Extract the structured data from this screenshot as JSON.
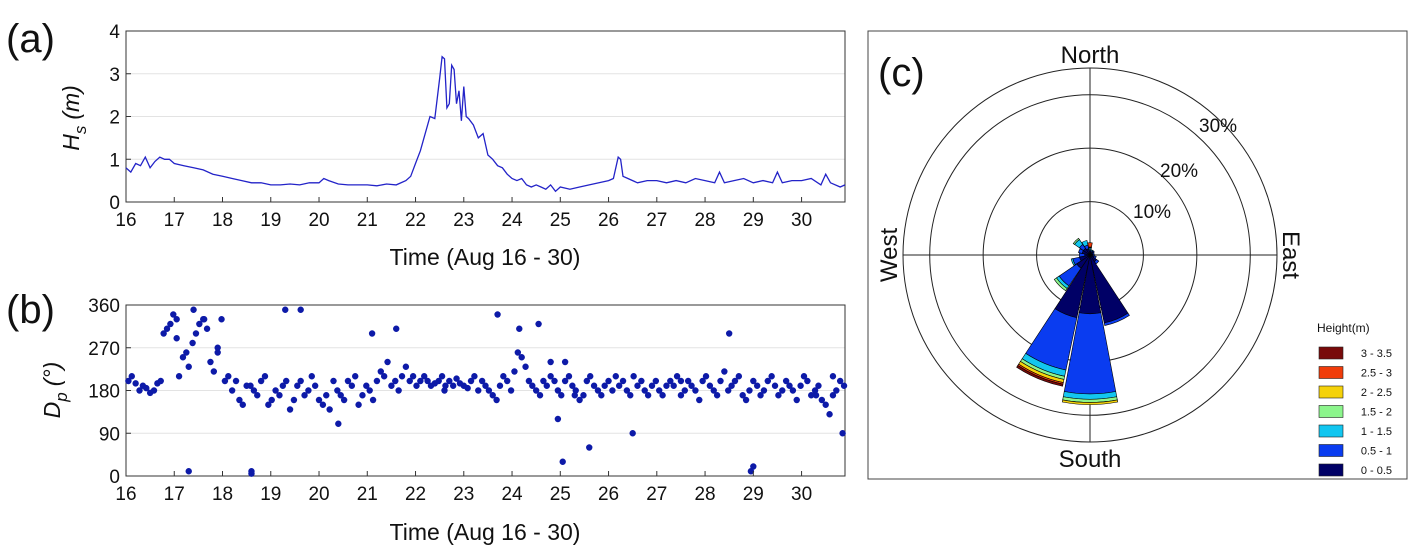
{
  "chart_data": [
    {
      "panel": "(a)",
      "type": "line",
      "ylabel_main": "H",
      "ylabel_sub": "s",
      "ylabel_unit": "(m)",
      "xlabel": "Time (Aug 16 - 30)",
      "xlim": [
        16,
        30.9
      ],
      "ylim": [
        0,
        4
      ],
      "x_ticks": [
        "16",
        "17",
        "18",
        "19",
        "20",
        "21",
        "22",
        "23",
        "24",
        "25",
        "26",
        "27",
        "28",
        "29",
        "30"
      ],
      "y_ticks": [
        "0",
        "1",
        "2",
        "3",
        "4"
      ],
      "grid": true,
      "color": "#2323c8",
      "x": [
        16.0,
        16.1,
        16.2,
        16.3,
        16.4,
        16.5,
        16.6,
        16.7,
        16.8,
        16.9,
        17.0,
        17.2,
        17.4,
        17.6,
        17.8,
        18.0,
        18.2,
        18.4,
        18.6,
        18.8,
        19.0,
        19.2,
        19.4,
        19.6,
        19.8,
        20.0,
        20.1,
        20.2,
        20.4,
        20.6,
        20.8,
        21.0,
        21.2,
        21.4,
        21.6,
        21.8,
        21.9,
        22.0,
        22.1,
        22.2,
        22.3,
        22.4,
        22.5,
        22.55,
        22.6,
        22.65,
        22.7,
        22.75,
        22.8,
        22.85,
        22.9,
        22.95,
        23.0,
        23.05,
        23.1,
        23.2,
        23.3,
        23.4,
        23.5,
        23.6,
        23.7,
        23.8,
        23.9,
        24.0,
        24.1,
        24.2,
        24.3,
        24.4,
        24.5,
        24.6,
        24.7,
        24.8,
        24.9,
        25.0,
        25.2,
        25.4,
        25.6,
        25.8,
        26.0,
        26.1,
        26.2,
        26.25,
        26.3,
        26.4,
        26.6,
        26.8,
        27.0,
        27.2,
        27.4,
        27.6,
        27.8,
        28.0,
        28.2,
        28.3,
        28.4,
        28.6,
        28.8,
        29.0,
        29.2,
        29.4,
        29.5,
        29.6,
        29.8,
        30.0,
        30.2,
        30.4,
        30.5,
        30.6,
        30.8,
        30.9
      ],
      "y": [
        0.8,
        0.7,
        0.9,
        0.85,
        1.05,
        0.8,
        0.95,
        1.05,
        1.0,
        1.0,
        0.9,
        0.85,
        0.8,
        0.75,
        0.65,
        0.6,
        0.55,
        0.5,
        0.45,
        0.45,
        0.4,
        0.4,
        0.42,
        0.4,
        0.45,
        0.45,
        0.55,
        0.5,
        0.42,
        0.4,
        0.4,
        0.4,
        0.38,
        0.42,
        0.4,
        0.5,
        0.6,
        0.9,
        1.2,
        1.6,
        2.0,
        1.95,
        2.9,
        3.4,
        3.35,
        2.2,
        2.3,
        3.2,
        3.1,
        2.3,
        2.6,
        1.9,
        2.7,
        2.0,
        1.95,
        1.8,
        1.5,
        1.6,
        1.1,
        1.0,
        0.85,
        0.8,
        0.65,
        0.55,
        0.5,
        0.55,
        0.4,
        0.35,
        0.4,
        0.35,
        0.3,
        0.4,
        0.25,
        0.35,
        0.3,
        0.35,
        0.4,
        0.45,
        0.5,
        0.55,
        1.05,
        1.0,
        0.6,
        0.55,
        0.45,
        0.5,
        0.5,
        0.45,
        0.5,
        0.45,
        0.55,
        0.5,
        0.45,
        0.7,
        0.45,
        0.5,
        0.55,
        0.45,
        0.5,
        0.45,
        0.7,
        0.45,
        0.5,
        0.5,
        0.55,
        0.4,
        0.65,
        0.45,
        0.35,
        0.4
      ]
    },
    {
      "panel": "(b)",
      "type": "scatter",
      "ylabel_main": "D",
      "ylabel_sub": "p",
      "ylabel_unit": "(°)",
      "xlabel": "Time (Aug 16 - 30)",
      "xlim": [
        16,
        30.9
      ],
      "ylim": [
        0,
        360
      ],
      "x_ticks": [
        "16",
        "17",
        "18",
        "19",
        "20",
        "21",
        "22",
        "23",
        "24",
        "25",
        "26",
        "27",
        "28",
        "29",
        "30"
      ],
      "y_ticks": [
        "0",
        "90",
        "180",
        "270",
        "360"
      ],
      "grid": true,
      "color": "#0d1aa8",
      "x": [
        16.05,
        16.12,
        16.2,
        16.28,
        16.35,
        16.42,
        16.5,
        16.58,
        16.65,
        16.72,
        16.78,
        16.85,
        16.92,
        16.98,
        17.05,
        17.1,
        17.18,
        17.25,
        17.3,
        17.38,
        17.45,
        17.52,
        17.6,
        17.68,
        17.75,
        17.82,
        17.9,
        17.98,
        18.05,
        18.12,
        18.2,
        18.28,
        18.35,
        18.42,
        18.5,
        18.58,
        18.65,
        18.72,
        18.8,
        18.88,
        18.95,
        19.02,
        19.1,
        19.18,
        19.25,
        19.32,
        19.4,
        19.48,
        19.55,
        19.62,
        19.7,
        19.78,
        19.85,
        19.92,
        20.0,
        20.08,
        20.15,
        20.22,
        20.3,
        20.38,
        20.45,
        20.52,
        20.6,
        20.68,
        20.75,
        20.82,
        20.9,
        20.98,
        21.05,
        21.12,
        21.2,
        21.28,
        21.35,
        21.42,
        21.5,
        21.58,
        21.65,
        21.72,
        21.8,
        21.88,
        21.95,
        22.02,
        22.1,
        22.18,
        22.25,
        22.32,
        22.4,
        22.48,
        22.55,
        22.62,
        22.7,
        22.78,
        22.85,
        22.92,
        23.0,
        23.08,
        23.15,
        23.22,
        23.3,
        23.38,
        23.45,
        23.52,
        23.6,
        23.68,
        23.75,
        23.82,
        23.9,
        23.98,
        24.05,
        24.12,
        24.2,
        24.28,
        24.35,
        24.42,
        24.5,
        24.58,
        24.65,
        24.72,
        24.8,
        24.88,
        24.95,
        25.02,
        25.1,
        25.18,
        25.25,
        25.32,
        25.4,
        25.48,
        25.55,
        25.62,
        25.7,
        25.78,
        25.85,
        25.92,
        26.0,
        26.08,
        26.15,
        26.22,
        26.3,
        26.38,
        26.45,
        26.52,
        26.6,
        26.68,
        26.75,
        26.82,
        26.9,
        26.98,
        27.05,
        27.12,
        27.2,
        27.28,
        27.35,
        27.42,
        27.5,
        27.58,
        27.65,
        27.72,
        27.8,
        27.88,
        27.95,
        28.02,
        28.1,
        28.18,
        28.25,
        28.32,
        28.4,
        28.48,
        28.55,
        28.62,
        28.7,
        28.78,
        28.85,
        28.92,
        29.0,
        29.08,
        29.15,
        29.22,
        29.3,
        29.38,
        29.45,
        29.52,
        29.6,
        29.68,
        29.75,
        29.82,
        29.9,
        29.98,
        30.05,
        30.12,
        30.2,
        30.28,
        30.35,
        30.42,
        30.5,
        30.58,
        30.65,
        30.72,
        30.8,
        30.88,
        17.05,
        17.4,
        17.62,
        17.9,
        18.6,
        19.3,
        19.62,
        20.4,
        21.1,
        21.6,
        22.6,
        23.7,
        24.15,
        24.55,
        24.8,
        24.95,
        25.1,
        25.3,
        25.6,
        26.5,
        27.5,
        28.5,
        29.0,
        30.3,
        30.65,
        30.85,
        17.3,
        18.6,
        25.05,
        28.95
      ],
      "y": [
        200,
        210,
        195,
        180,
        190,
        185,
        175,
        180,
        195,
        200,
        300,
        310,
        320,
        340,
        290,
        210,
        250,
        260,
        230,
        280,
        300,
        320,
        330,
        310,
        240,
        220,
        260,
        330,
        200,
        210,
        180,
        200,
        160,
        150,
        190,
        190,
        180,
        170,
        200,
        210,
        150,
        160,
        180,
        170,
        190,
        200,
        140,
        160,
        190,
        200,
        170,
        180,
        210,
        190,
        160,
        150,
        170,
        140,
        200,
        180,
        170,
        160,
        200,
        190,
        210,
        150,
        170,
        190,
        180,
        160,
        200,
        220,
        210,
        240,
        190,
        200,
        180,
        210,
        230,
        200,
        210,
        190,
        200,
        210,
        200,
        190,
        195,
        200,
        210,
        190,
        200,
        190,
        205,
        195,
        190,
        185,
        200,
        210,
        180,
        200,
        190,
        180,
        170,
        160,
        190,
        210,
        200,
        180,
        220,
        260,
        250,
        230,
        200,
        190,
        180,
        170,
        200,
        190,
        210,
        200,
        180,
        170,
        200,
        210,
        190,
        180,
        160,
        170,
        200,
        210,
        190,
        180,
        170,
        190,
        200,
        180,
        210,
        190,
        200,
        180,
        170,
        210,
        190,
        200,
        180,
        170,
        190,
        200,
        180,
        170,
        190,
        200,
        190,
        210,
        170,
        180,
        200,
        190,
        180,
        160,
        200,
        210,
        190,
        180,
        170,
        200,
        220,
        180,
        190,
        200,
        210,
        170,
        160,
        180,
        200,
        190,
        170,
        180,
        200,
        210,
        190,
        170,
        180,
        200,
        190,
        180,
        160,
        190,
        210,
        200,
        170,
        180,
        190,
        160,
        150,
        130,
        170,
        180,
        200,
        190,
        330,
        350,
        330,
        270,
        10,
        350,
        350,
        110,
        300,
        310,
        180,
        340,
        310,
        320,
        240,
        120,
        240,
        170,
        60,
        90,
        200,
        300,
        20,
        170,
        210,
        90,
        10,
        5,
        30,
        10
      ]
    },
    {
      "panel": "(c)",
      "type": "wind-rose",
      "directions": [
        "North",
        "East",
        "South",
        "West"
      ],
      "ring_labels": [
        "10%",
        "20%",
        "30%"
      ],
      "ring_values": [
        10,
        20,
        30
      ],
      "max_percent": 35,
      "legend_title": "Height(m)",
      "bins": [
        {
          "label": "0 - 0.5",
          "color": "#000066"
        },
        {
          "label": "0.5 - 1",
          "color": "#0a3cf0"
        },
        {
          "label": "1 - 1.5",
          "color": "#12c6f0"
        },
        {
          "label": "1.5 - 2",
          "color": "#8cf58c"
        },
        {
          "label": "2 - 2.5",
          "color": "#f5d20a"
        },
        {
          "label": "2.5 - 3",
          "color": "#f03c0a"
        },
        {
          "label": "3 - 3.5",
          "color": "#780a0a"
        }
      ],
      "sector_width_deg": 22.5,
      "sectors": [
        {
          "dir": 0,
          "cum": [
            0.8,
            1.0,
            1.3,
            1.4,
            1.5,
            2.3
          ]
        },
        {
          "dir": 22.5,
          "cum": [
            0.5,
            0.8,
            1.0
          ]
        },
        {
          "dir": 45,
          "cum": [
            0.7,
            1.0
          ]
        },
        {
          "dir": 67.5,
          "cum": [
            0.5,
            0.8
          ]
        },
        {
          "dir": 90,
          "cum": [
            0.5,
            0.8
          ]
        },
        {
          "dir": 112.5,
          "cum": [
            0.8,
            1.2
          ]
        },
        {
          "dir": 135,
          "cum": [
            1.5,
            2.0
          ]
        },
        {
          "dir": 157.5,
          "cum": [
            13.0,
            13.5
          ]
        },
        {
          "dir": 180,
          "cum": [
            11.0,
            26.0,
            27.0,
            27.6,
            28.0
          ]
        },
        {
          "dir": 202.5,
          "cum": [
            12.0,
            22.0,
            23.2,
            23.8,
            24.4,
            24.7,
            25.1
          ]
        },
        {
          "dir": 225,
          "cum": [
            3.0,
            7.0,
            7.6,
            8.1
          ]
        },
        {
          "dir": 247.5,
          "cum": [
            2.0,
            3.3,
            3.6
          ]
        },
        {
          "dir": 270,
          "cum": [
            1.0,
            2.0
          ]
        },
        {
          "dir": 292.5,
          "cum": [
            1.5,
            2.2
          ]
        },
        {
          "dir": 315,
          "cum": [
            1.5,
            2.4,
            3.5,
            3.8
          ]
        },
        {
          "dir": 337.5,
          "cum": [
            1.2,
            1.9,
            2.8
          ]
        }
      ]
    }
  ]
}
